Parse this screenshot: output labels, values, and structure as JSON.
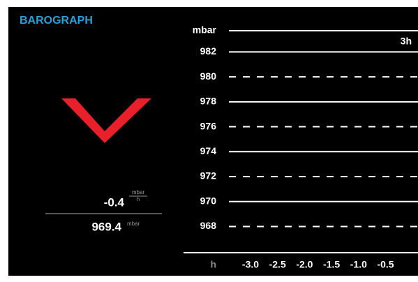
{
  "title": "BAROGRAPH",
  "rate": {
    "value": -0.4,
    "unit_numerator": "mbar",
    "unit_denominator": "h"
  },
  "pressure": {
    "value": 969.4,
    "unit": "mbar"
  },
  "chart_data": {
    "type": "line",
    "ylabel": "mbar",
    "xlabel": "h",
    "range_label": "3h",
    "series": [],
    "ylim": [
      965.9,
      983.7
    ],
    "yticks": [
      968,
      970,
      972,
      974,
      976,
      978,
      980,
      982
    ],
    "xlim": [
      -3.4,
      0.1
    ],
    "xticks": [
      {
        "value": -3,
        "label": "-3.0"
      },
      {
        "value": -2.5,
        "label": "-2.5"
      },
      {
        "value": -2,
        "label": "-2.0"
      },
      {
        "value": -1.5,
        "label": "-1.5"
      },
      {
        "value": -1,
        "label": "-1.0"
      },
      {
        "value": -0.5,
        "label": "-0.5"
      }
    ],
    "grid": true,
    "grid_dash": "alternate"
  }
}
